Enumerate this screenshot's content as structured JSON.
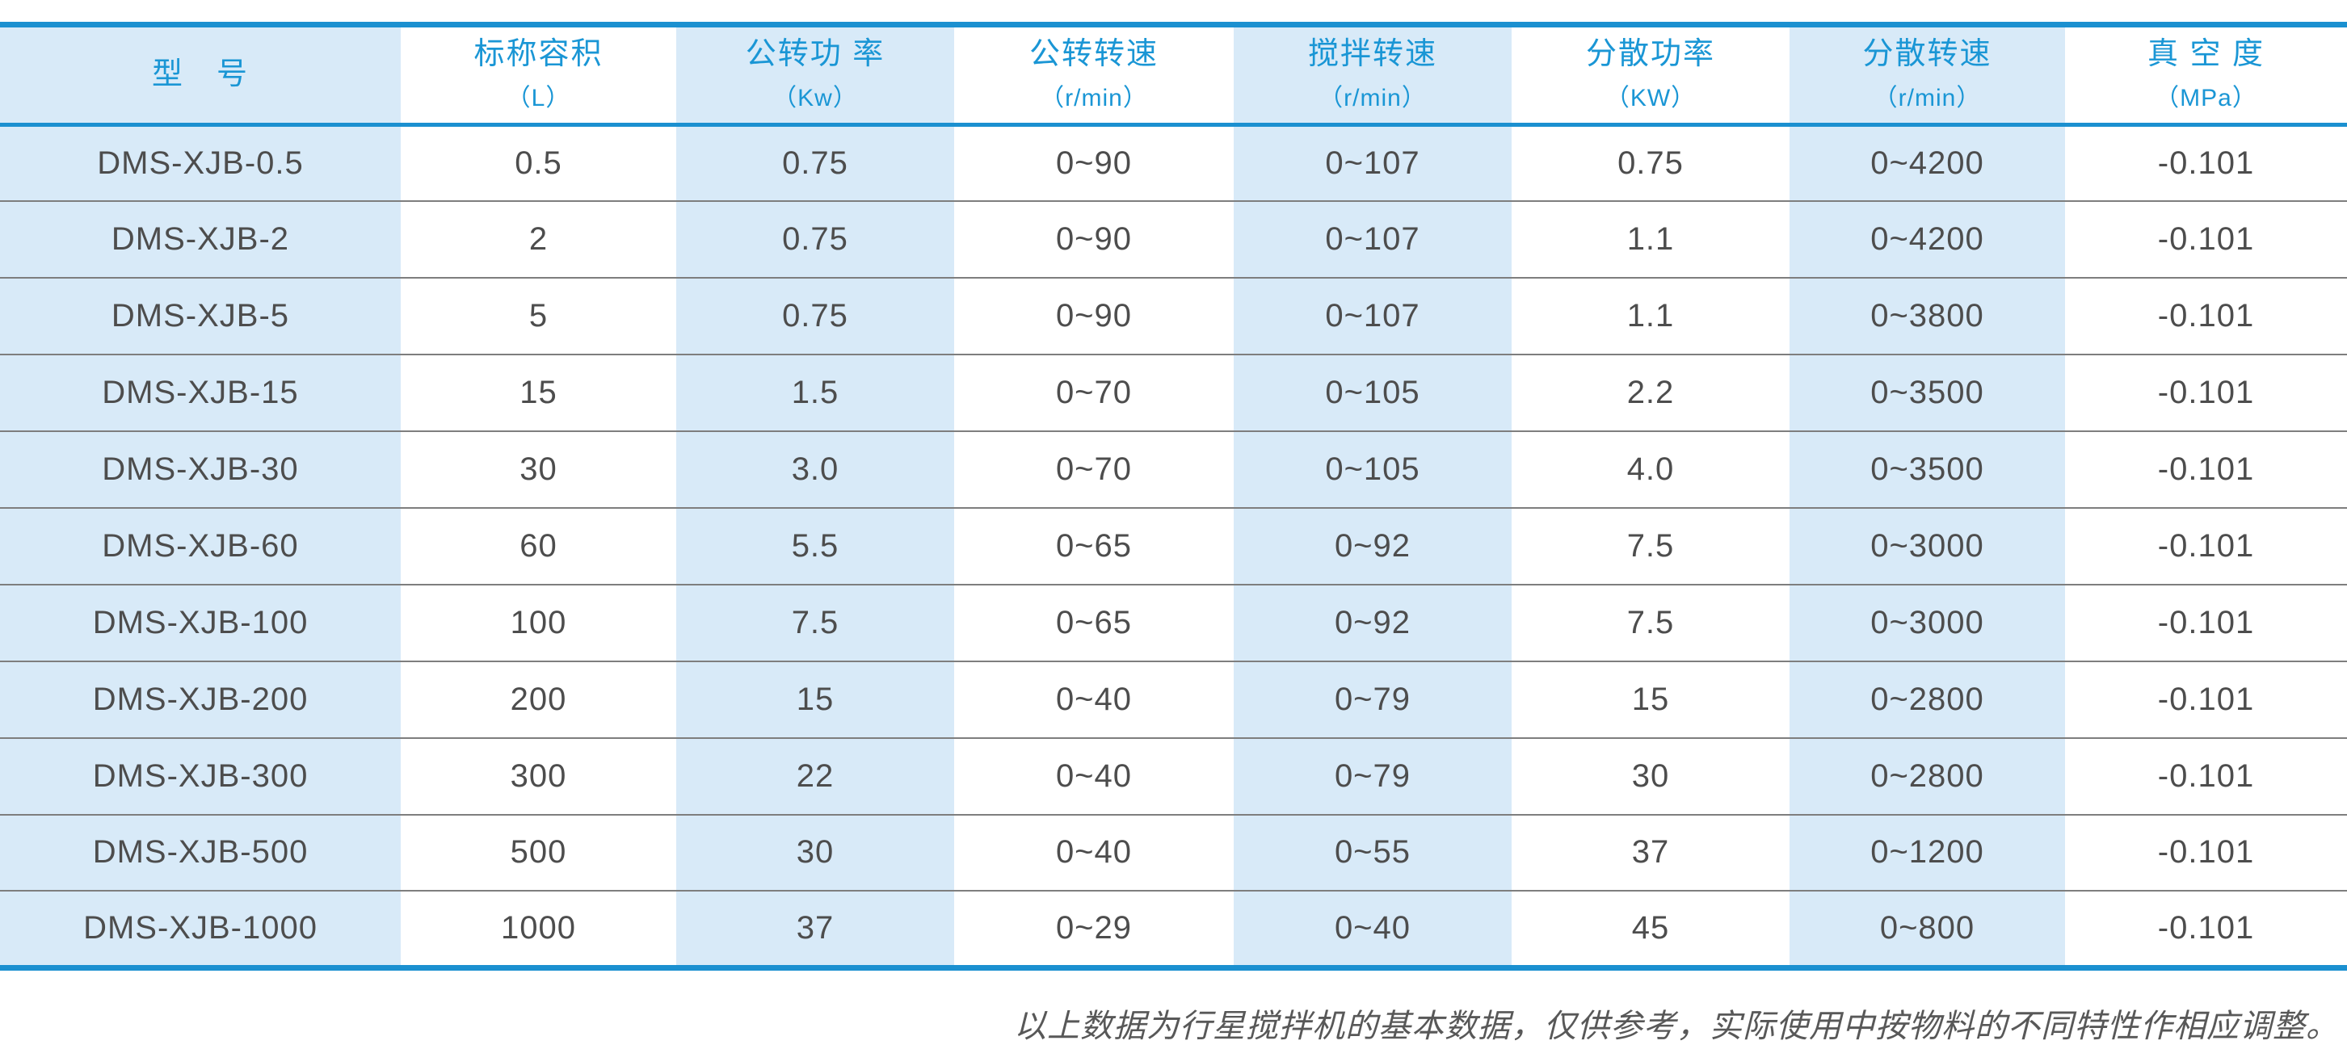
{
  "colors": {
    "border_blue": "#1b90d0",
    "stripe_blue": "#d8eaf8",
    "header_text": "#1a96d5",
    "cell_text": "#4d4d4d",
    "row_line": "#7e7e7e",
    "note_text": "#585858",
    "page_bg": "#ffffff"
  },
  "table": {
    "columns": [
      {
        "label": "型　号",
        "unit": ""
      },
      {
        "label": "标称容积",
        "unit": "（L）"
      },
      {
        "label": "公转功 率",
        "unit": "（Kw）"
      },
      {
        "label": "公转转速",
        "unit": "（r/min）"
      },
      {
        "label": "搅拌转速",
        "unit": "（r/min）"
      },
      {
        "label": "分散功率",
        "unit": "（KW）"
      },
      {
        "label": "分散转速",
        "unit": "（r/min）"
      },
      {
        "label": "真 空 度",
        "unit": "（MPa）"
      }
    ],
    "rows": [
      [
        "DMS-XJB-0.5",
        "0.5",
        "0.75",
        "0~90",
        "0~107",
        "0.75",
        "0~4200",
        "-0.101"
      ],
      [
        "DMS-XJB-2",
        "2",
        "0.75",
        "0~90",
        "0~107",
        "1.1",
        "0~4200",
        "-0.101"
      ],
      [
        "DMS-XJB-5",
        "5",
        "0.75",
        "0~90",
        "0~107",
        "1.1",
        "0~3800",
        "-0.101"
      ],
      [
        "DMS-XJB-15",
        "15",
        "1.5",
        "0~70",
        "0~105",
        "2.2",
        "0~3500",
        "-0.101"
      ],
      [
        "DMS-XJB-30",
        "30",
        "3.0",
        "0~70",
        "0~105",
        "4.0",
        "0~3500",
        "-0.101"
      ],
      [
        "DMS-XJB-60",
        "60",
        "5.5",
        "0~65",
        "0~92",
        "7.5",
        "0~3000",
        "-0.101"
      ],
      [
        "DMS-XJB-100",
        "100",
        "7.5",
        "0~65",
        "0~92",
        "7.5",
        "0~3000",
        "-0.101"
      ],
      [
        "DMS-XJB-200",
        "200",
        "15",
        "0~40",
        "0~79",
        "15",
        "0~2800",
        "-0.101"
      ],
      [
        "DMS-XJB-300",
        "300",
        "22",
        "0~40",
        "0~79",
        "30",
        "0~2800",
        "-0.101"
      ],
      [
        "DMS-XJB-500",
        "500",
        "30",
        "0~40",
        "0~55",
        "37",
        "0~1200",
        "-0.101"
      ],
      [
        "DMS-XJB-1000",
        "1000",
        "37",
        "0~29",
        "0~40",
        "45",
        "0~800",
        "-0.101"
      ]
    ]
  },
  "footer": {
    "note": "以上数据为行星搅拌机的基本数据，仅供参考，实际使用中按物料的不同特性作相应调整。"
  }
}
